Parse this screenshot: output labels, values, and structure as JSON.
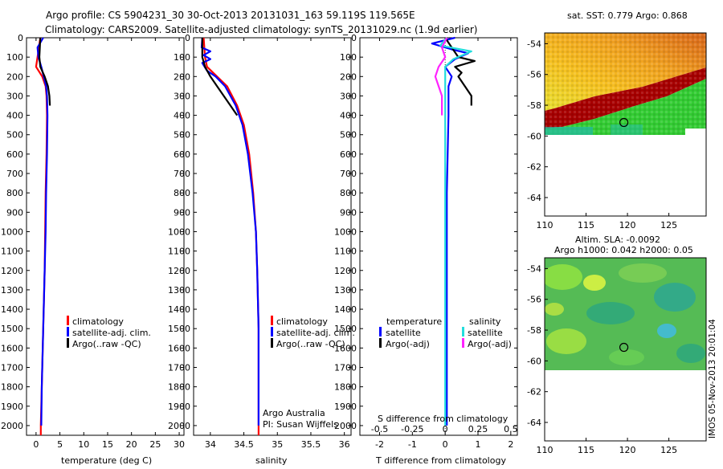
{
  "header": {
    "line1": "Argo profile: CS 5904231_30 30-Oct-2013 20131031_163 59.119S 119.565E",
    "line2": "Climatology: CARS2009. Satellite-adjusted climatology: synTS_20131029.nc (1.9d earlier)"
  },
  "colors": {
    "climatology": "#ff0000",
    "satellite": "#0000ff",
    "argo": "#000000",
    "satellite_sal": "#22dddd",
    "argo_sal": "#ff22ff"
  },
  "chart_data": [
    {
      "type": "line",
      "panel": "temperature",
      "xlabel": "temperature (deg C)",
      "xlim": [
        -2,
        31
      ],
      "xticks": [
        "0",
        "5",
        "10",
        "15",
        "20",
        "25",
        "30"
      ],
      "ylim": [
        0,
        2050
      ],
      "yticks": [
        "0",
        "100",
        "200",
        "300",
        "400",
        "500",
        "600",
        "700",
        "800",
        "900",
        "1000",
        "1100",
        "1200",
        "1300",
        "1400",
        "1500",
        "1600",
        "1700",
        "1800",
        "1900",
        "2000"
      ],
      "legend": [
        "climatology",
        "satellite-adj. clim.",
        "Argo(..raw -QC)"
      ],
      "series": [
        {
          "name": "climatology",
          "color": "#ff0000",
          "points": [
            [
              0.9,
              0
            ],
            [
              0.6,
              50
            ],
            [
              0.3,
              100
            ],
            [
              0.0,
              150
            ],
            [
              1.3,
              200
            ],
            [
              2.0,
              250
            ],
            [
              2.2,
              300
            ],
            [
              2.3,
              400
            ],
            [
              2.2,
              600
            ],
            [
              2.0,
              800
            ],
            [
              1.9,
              1000
            ],
            [
              1.8,
              1200
            ],
            [
              1.6,
              1400
            ],
            [
              1.4,
              1600
            ],
            [
              1.2,
              1800
            ],
            [
              1.0,
              2000
            ],
            [
              1.0,
              2050
            ]
          ]
        },
        {
          "name": "satellite-adj. clim.",
          "color": "#0000ff",
          "points": [
            [
              1.5,
              0
            ],
            [
              0.3,
              50
            ],
            [
              0.5,
              100
            ],
            [
              1.1,
              150
            ],
            [
              1.6,
              200
            ],
            [
              2.1,
              250
            ],
            [
              2.3,
              300
            ],
            [
              2.4,
              400
            ],
            [
              2.3,
              600
            ],
            [
              2.1,
              800
            ],
            [
              2.0,
              1000
            ],
            [
              1.8,
              1200
            ],
            [
              1.6,
              1400
            ],
            [
              1.4,
              1600
            ],
            [
              1.2,
              1800
            ],
            [
              1.1,
              2000
            ]
          ]
        },
        {
          "name": "Argo(..raw -QC)",
          "color": "#000000",
          "points": [
            [
              0.9,
              0
            ],
            [
              0.8,
              50
            ],
            [
              0.7,
              100
            ],
            [
              0.9,
              150
            ],
            [
              1.8,
              200
            ],
            [
              2.5,
              250
            ],
            [
              2.8,
              300
            ],
            [
              2.9,
              350
            ]
          ]
        }
      ]
    },
    {
      "type": "line",
      "panel": "salinity",
      "xlabel": "salinity",
      "xlim": [
        33.75,
        36.1
      ],
      "xticks": [
        "34",
        "34.5",
        "35",
        "35.5",
        "36"
      ],
      "ylim": [
        0,
        2050
      ],
      "legend": [
        "climatology",
        "satellite-adj. clim.",
        "Argo(..raw -QC)"
      ],
      "annotation": [
        "Argo Australia",
        "PI: Susan Wijffels"
      ],
      "series": [
        {
          "name": "climatology",
          "color": "#ff0000",
          "points": [
            [
              33.9,
              0
            ],
            [
              33.92,
              100
            ],
            [
              33.95,
              150
            ],
            [
              34.1,
              200
            ],
            [
              34.25,
              250
            ],
            [
              34.4,
              350
            ],
            [
              34.5,
              450
            ],
            [
              34.58,
              600
            ],
            [
              34.64,
              800
            ],
            [
              34.68,
              1000
            ],
            [
              34.7,
              1200
            ],
            [
              34.72,
              1500
            ],
            [
              34.72,
              1800
            ],
            [
              34.72,
              2050
            ]
          ]
        },
        {
          "name": "satellite-adj. clim.",
          "color": "#0000ff",
          "points": [
            [
              33.88,
              0
            ],
            [
              33.87,
              50
            ],
            [
              34.0,
              70
            ],
            [
              33.9,
              90
            ],
            [
              34.0,
              110
            ],
            [
              33.88,
              130
            ],
            [
              33.95,
              170
            ],
            [
              34.08,
              200
            ],
            [
              34.22,
              250
            ],
            [
              34.38,
              350
            ],
            [
              34.48,
              450
            ],
            [
              34.56,
              600
            ],
            [
              34.63,
              800
            ],
            [
              34.68,
              1000
            ],
            [
              34.7,
              1200
            ],
            [
              34.72,
              1500
            ],
            [
              34.72,
              1800
            ],
            [
              34.72,
              2000
            ]
          ]
        },
        {
          "name": "Argo(..raw -QC)",
          "color": "#000000",
          "points": [
            [
              33.88,
              0
            ],
            [
              33.88,
              100
            ],
            [
              33.92,
              150
            ],
            [
              34.0,
              200
            ],
            [
              34.1,
              250
            ],
            [
              34.3,
              350
            ],
            [
              34.4,
              400
            ]
          ]
        }
      ]
    },
    {
      "type": "line",
      "panel": "difference",
      "xlabel": "T difference from climatology",
      "xlabel_top": "S difference from climatology",
      "xlim": [
        -2.6,
        2.2
      ],
      "xticks": [
        "-2",
        "-1",
        "0",
        "1",
        "2"
      ],
      "xticks_top": [
        "-0.5",
        "-0.25",
        "0",
        "0.25",
        "0.5"
      ],
      "ylim": [
        0,
        2050
      ],
      "legend_titles": [
        "temperature",
        "salinity"
      ],
      "legend": [
        "satellite",
        "Argo(-adj)",
        "satellite",
        "Argo(-adj)"
      ],
      "series": [
        {
          "name": "temperature satellite",
          "color": "#0000ff",
          "points": [
            [
              0.3,
              0
            ],
            [
              -0.4,
              30
            ],
            [
              0.2,
              60
            ],
            [
              0.7,
              80
            ],
            [
              0.3,
              110
            ],
            [
              0.0,
              150
            ],
            [
              0.2,
              200
            ],
            [
              0.1,
              250
            ],
            [
              0.1,
              400
            ],
            [
              0.05,
              800
            ],
            [
              0.05,
              1200
            ],
            [
              0.05,
              1600
            ],
            [
              0.05,
              2000
            ]
          ]
        },
        {
          "name": "temperature Argo(-adj)",
          "color": "#000000",
          "points": [
            [
              0.0,
              0
            ],
            [
              0.2,
              50
            ],
            [
              0.4,
              100
            ],
            [
              0.9,
              120
            ],
            [
              0.3,
              150
            ],
            [
              0.5,
              180
            ],
            [
              0.4,
              200
            ],
            [
              0.6,
              250
            ],
            [
              0.8,
              300
            ],
            [
              0.8,
              350
            ]
          ]
        },
        {
          "name": "salinity satellite",
          "color": "#22dddd",
          "points": [
            [
              0.05,
              0
            ],
            [
              -0.15,
              40
            ],
            [
              0.8,
              70
            ],
            [
              0.25,
              110
            ],
            [
              0.0,
              150
            ],
            [
              0.0,
              200
            ],
            [
              0.0,
              400
            ],
            [
              0.0,
              800
            ],
            [
              0.0,
              1200
            ],
            [
              0.0,
              1600
            ],
            [
              0.0,
              2000
            ]
          ]
        },
        {
          "name": "salinity Argo(-adj)",
          "color": "#ff22ff",
          "points": [
            [
              0.05,
              0
            ],
            [
              -0.1,
              50
            ],
            [
              0.0,
              100
            ],
            [
              -0.2,
              150
            ],
            [
              -0.3,
              200
            ],
            [
              -0.2,
              250
            ],
            [
              -0.1,
              300
            ],
            [
              -0.1,
              400
            ]
          ]
        }
      ]
    },
    {
      "type": "heatmap",
      "panel": "sst-map",
      "title": "sat. SST: 0.779 Argo: 0.868",
      "xticks": [
        "110",
        "115",
        "120",
        "125"
      ],
      "yticks": [
        "-54",
        "-56",
        "-58",
        "-60",
        "-62",
        "-64"
      ],
      "xlim": [
        110,
        129.5
      ],
      "ylim": [
        -65.2,
        -53.3
      ],
      "argo_position": {
        "lon": 119.565,
        "lat": -59.119
      }
    },
    {
      "type": "heatmap",
      "panel": "sla-map",
      "title": "Altim. SLA: -0.0092",
      "subtitle": "Argo h1000: 0.042 h2000: 0.05",
      "xticks": [
        "110",
        "115",
        "120",
        "125"
      ],
      "yticks": [
        "-54",
        "-56",
        "-58",
        "-60",
        "-62",
        "-64"
      ],
      "xlim": [
        110,
        129.5
      ],
      "ylim": [
        -65.2,
        -53.3
      ],
      "argo_position": {
        "lon": 119.565,
        "lat": -59.119
      }
    }
  ],
  "footer": {
    "stamp": "IMOS 05-Nov-2013 20:01:04"
  }
}
